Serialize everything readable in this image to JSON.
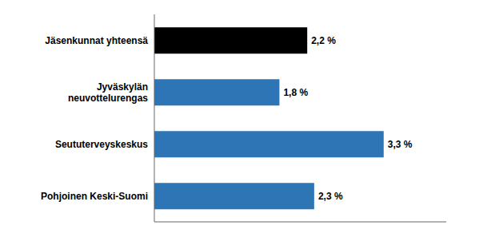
{
  "chart_data": {
    "type": "bar",
    "orientation": "horizontal",
    "categories": [
      "Pohjoinen Keski-Suomi",
      "Seututerveyskeskus",
      "Jyväskylän\nneuvottelurengas",
      "Jäsenkunnat yhteensä"
    ],
    "values": [
      2.3,
      3.3,
      1.8,
      2.2
    ],
    "value_labels": [
      "2,3 %",
      "3,3 %",
      "1,8 %",
      "2,2 %"
    ],
    "colors": [
      "#2E75B6",
      "#2E75B6",
      "#2E75B6",
      "#000000"
    ],
    "xlim": [
      0,
      4.2
    ],
    "xticks": [],
    "data_labels": true,
    "tick_labels": "y",
    "grid": false
  }
}
